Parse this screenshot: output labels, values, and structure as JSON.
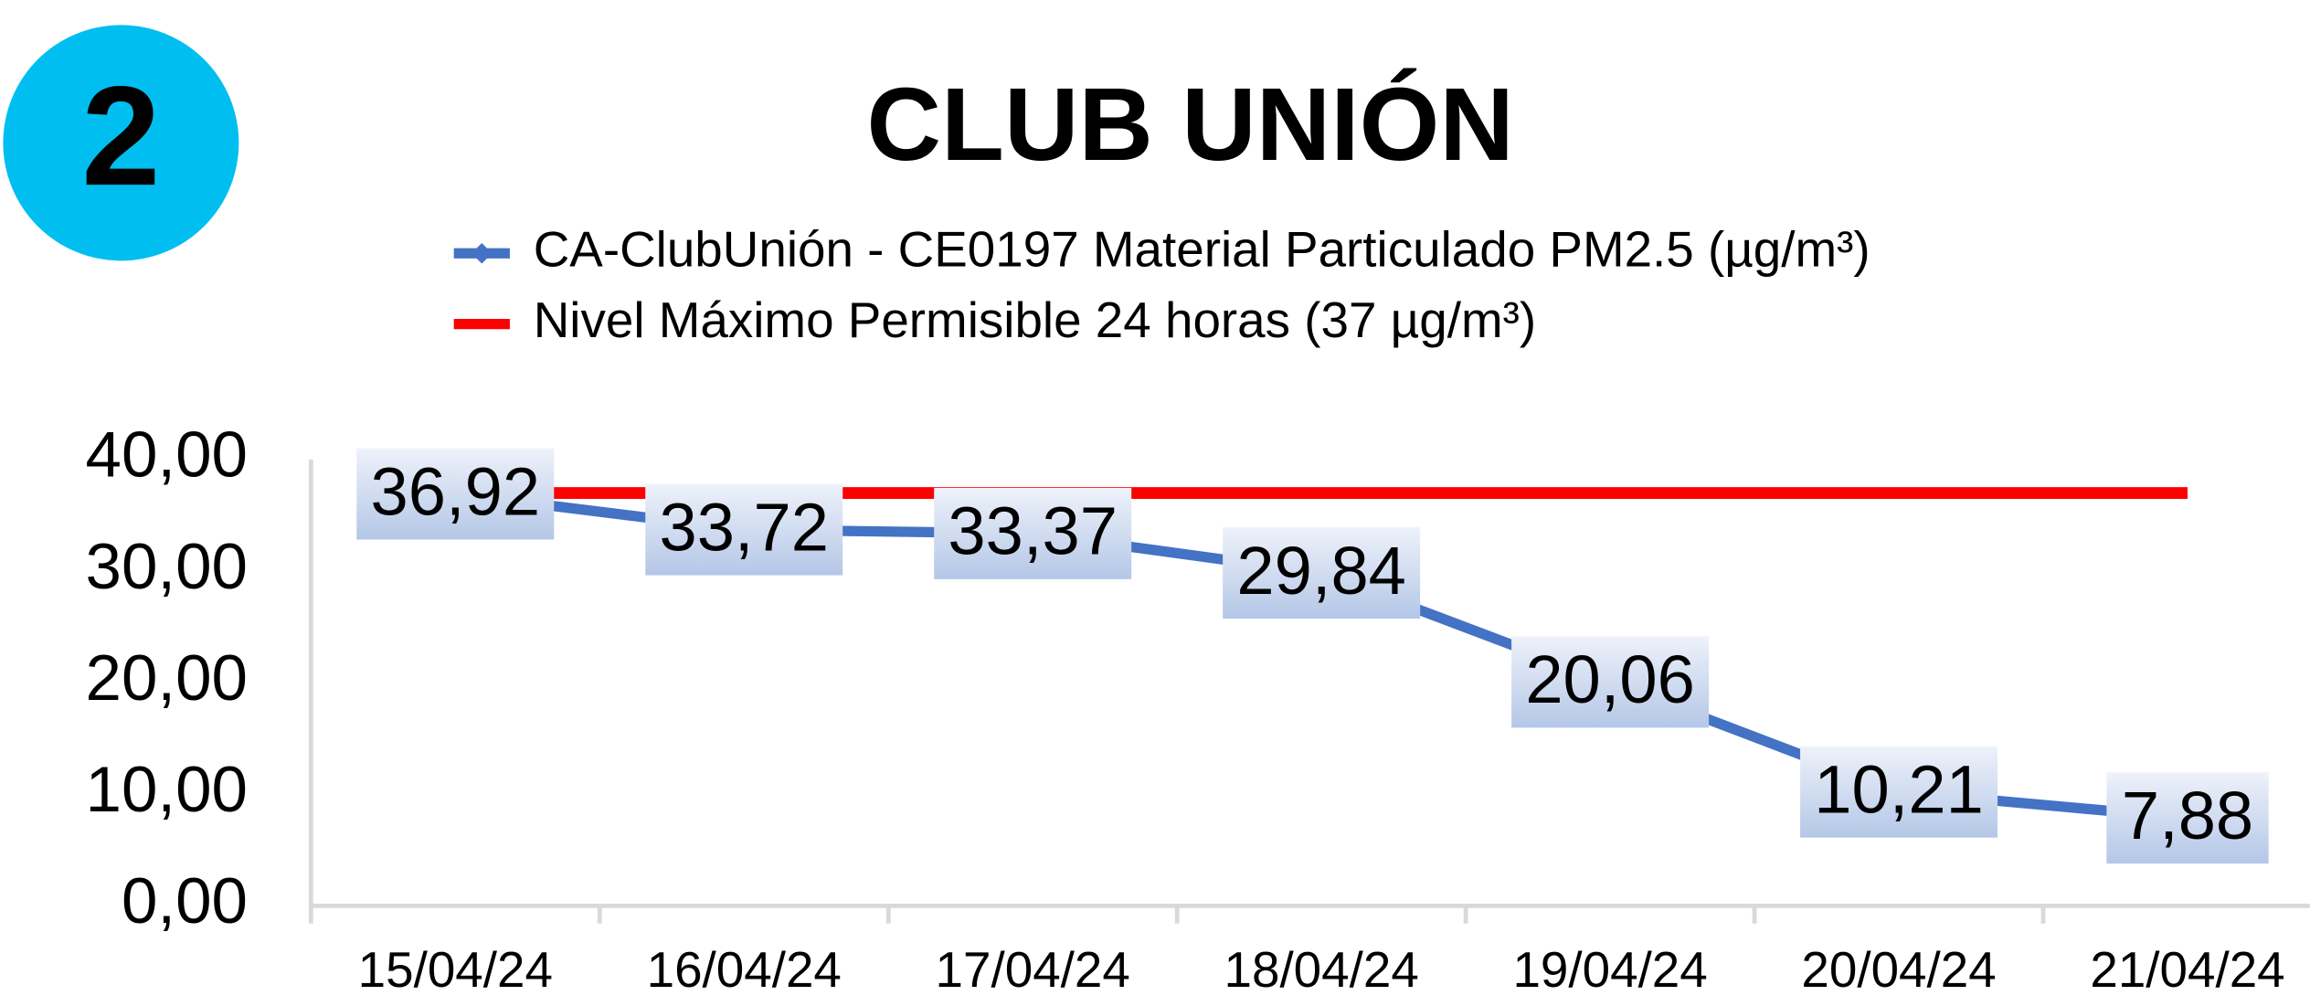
{
  "badge": "2",
  "chart_data": {
    "type": "line",
    "title": "CLUB UNIÓN",
    "categories": [
      "15/04/24",
      "16/04/24",
      "17/04/24",
      "18/04/24",
      "19/04/24",
      "20/04/24",
      "21/04/24"
    ],
    "series": [
      {
        "name": "CA-ClubUnión - CE0197 Material Particulado PM2.5 (µg/m³)",
        "color": "#4472c4",
        "values": [
          36.92,
          33.72,
          33.37,
          29.84,
          20.06,
          10.21,
          7.88
        ],
        "value_labels": [
          "36,92",
          "33,72",
          "33,37",
          "29,84",
          "20,06",
          "10,21",
          "7,88"
        ]
      },
      {
        "name": "Nivel Máximo Permisible 24 horas (37 µg/m³)",
        "color": "#ff0000",
        "values": [
          37,
          37,
          37,
          37,
          37,
          37,
          37
        ]
      }
    ],
    "ylim": [
      0,
      40
    ],
    "yticks": [
      {
        "value": 0,
        "label": "0,00"
      },
      {
        "value": 10,
        "label": "10,00"
      },
      {
        "value": 20,
        "label": "20,00"
      },
      {
        "value": 30,
        "label": "30,00"
      },
      {
        "value": 40,
        "label": "40,00"
      }
    ],
    "legend": "top"
  }
}
